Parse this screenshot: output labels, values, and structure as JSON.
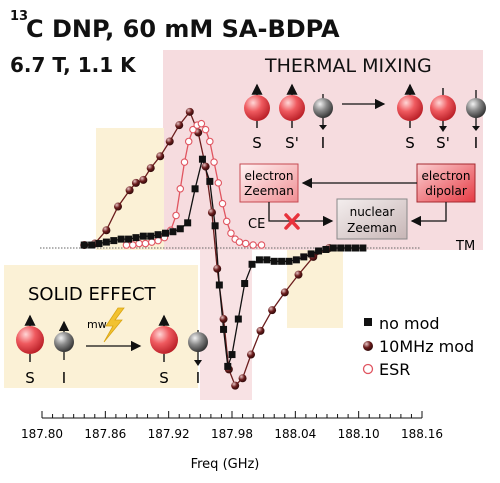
{
  "title_sup": "13",
  "title_main": "C DNP, 60 mM SA-BDPA",
  "subtitle": "6.7 T, 1.1 K",
  "thermal_mixing": {
    "title": "THERMAL MIXING",
    "spin_labels_before": [
      "S",
      "S'",
      "I"
    ],
    "spin_labels_after": [
      "S",
      "S'",
      "I"
    ],
    "box_electron_zeeman": [
      "electron",
      "Zeeman"
    ],
    "box_electron_dipolar": [
      "electron",
      "dipolar"
    ],
    "box_nuclear_zeeman": [
      "nuclear",
      "Zeeman"
    ],
    "ce_label": "CE",
    "tm_label": "TM"
  },
  "solid_effect": {
    "title": "SOLID EFFECT",
    "mw_label": "mw",
    "spin_labels_before": [
      "S",
      "I"
    ],
    "spin_labels_after": [
      "S",
      "I"
    ]
  },
  "colors": {
    "pink_region": "#f6dcdf",
    "yellow_region": "#fbf1d6",
    "sphere_red": "#e8323c",
    "sphere_grey": "#555555",
    "series_nomod": "#111111",
    "series_10mhz": "#6b1d1d",
    "series_esr": "#e05560",
    "cross": "#e8323c",
    "bolt": "#f2c230"
  },
  "chart_data": {
    "type": "scatter",
    "xlabel": "Freq (GHz)",
    "xlim": [
      187.8,
      188.16
    ],
    "ylim": [
      -1.0,
      1.0
    ],
    "xticks": [
      187.8,
      187.86,
      187.92,
      187.98,
      188.04,
      188.1,
      188.16
    ],
    "xtick_labels": [
      "187.80",
      "187.86",
      "187.92",
      "187.98",
      "188.04",
      "188.10",
      "188.16"
    ],
    "legend": [
      "no mod",
      "10MHz mod",
      "ESR"
    ],
    "series": [
      {
        "name": "no mod",
        "marker": "square",
        "x": [
          187.84,
          187.847,
          187.854,
          187.861,
          187.868,
          187.875,
          187.882,
          187.889,
          187.896,
          187.903,
          187.91,
          187.917,
          187.924,
          187.931,
          187.938,
          187.945,
          187.952,
          187.959,
          187.964,
          187.968,
          187.972,
          187.976,
          187.98,
          187.986,
          187.992,
          187.999,
          188.006,
          188.013,
          188.02,
          188.027,
          188.034,
          188.041,
          188.048,
          188.055,
          188.062,
          188.069,
          188.076,
          188.083,
          188.09,
          188.097,
          188.104
        ],
        "y": [
          0.02,
          0.02,
          0.03,
          0.04,
          0.05,
          0.06,
          0.06,
          0.07,
          0.08,
          0.08,
          0.09,
          0.1,
          0.11,
          0.13,
          0.17,
          0.4,
          0.6,
          0.45,
          0.15,
          -0.25,
          -0.55,
          -0.8,
          -0.72,
          -0.48,
          -0.24,
          -0.11,
          -0.08,
          -0.08,
          -0.09,
          -0.09,
          -0.09,
          -0.08,
          -0.06,
          -0.04,
          -0.02,
          -0.01,
          0.0,
          0.0,
          0.0,
          0.0,
          0.0
        ]
      },
      {
        "name": "10MHz mod",
        "marker": "sphere",
        "x": [
          187.84,
          187.85,
          187.861,
          187.872,
          187.883,
          187.889,
          187.896,
          187.903,
          187.912,
          187.921,
          187.93,
          187.94,
          187.948,
          187.955,
          187.961,
          187.966,
          187.972,
          187.977,
          187.983,
          187.99,
          187.998,
          188.007,
          188.018,
          188.03,
          188.043,
          188.057,
          188.072
        ],
        "y": [
          0.02,
          0.03,
          0.12,
          0.28,
          0.39,
          0.44,
          0.46,
          0.54,
          0.62,
          0.72,
          0.83,
          0.92,
          0.78,
          0.55,
          0.24,
          -0.14,
          -0.48,
          -0.82,
          -0.93,
          -0.88,
          -0.72,
          -0.56,
          -0.42,
          -0.3,
          -0.18,
          -0.06,
          0.0
        ]
      },
      {
        "name": "ESR",
        "marker": "open-circle",
        "x": [
          187.88,
          187.886,
          187.892,
          187.898,
          187.904,
          187.91,
          187.916,
          187.922,
          187.927,
          187.931,
          187.935,
          187.939,
          187.943,
          187.947,
          187.951,
          187.955,
          187.959,
          187.963,
          187.967,
          187.971,
          187.975,
          187.979,
          187.983,
          187.987,
          187.993,
          188.0,
          188.008
        ],
        "y": [
          0.02,
          0.02,
          0.03,
          0.03,
          0.04,
          0.05,
          0.07,
          0.12,
          0.22,
          0.4,
          0.58,
          0.72,
          0.8,
          0.83,
          0.84,
          0.8,
          0.72,
          0.58,
          0.44,
          0.3,
          0.18,
          0.1,
          0.06,
          0.04,
          0.03,
          0.02,
          0.02
        ]
      }
    ],
    "shaded_regions": [
      {
        "x0": 187.844,
        "x1": 187.907,
        "kind": "solid-effect"
      },
      {
        "x0": 187.917,
        "x1": 188.002,
        "kind": "thermal-mixing"
      },
      {
        "x0": 188.028,
        "x1": 188.061,
        "kind": "solid-effect"
      }
    ]
  }
}
